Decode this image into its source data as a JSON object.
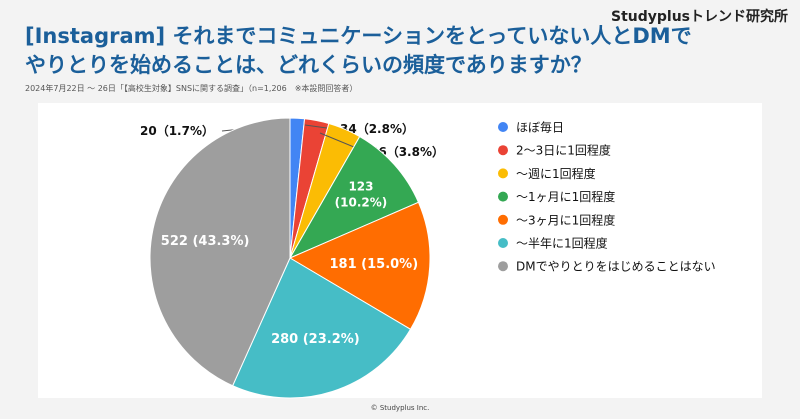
{
  "brand": "Studyplusトレンド研究所",
  "title_line1": "[Instagram] それまでコミュニケーションをとっていない人とDMで",
  "title_line2": "やりとりを始めることは、どれくらいの頻度でありますか？",
  "subtitle": "2024年7月22日 〜 26日「【高校生対象】SNSに関する調査」（n=1,206　※本設問回答者）",
  "copyright": "© Studyplus Inc.",
  "chart_data": {
    "type": "pie",
    "legend_position": "right",
    "categories": [
      "ほぼ毎日",
      "2〜3日に1回程度",
      "〜週に1回程度",
      "〜1ヶ月に1回程度",
      "〜3ヶ月に1回程度",
      "〜半年に1回程度",
      "DMでやりとりをはじめることはない"
    ],
    "values": [
      20,
      34,
      46,
      123,
      181,
      280,
      522
    ],
    "labels": [
      "20（1.7%）",
      "34（2.8%）",
      "46（3.8%）",
      "123 (10.2%)",
      "181 (15.0%)",
      "280 (23.2%)",
      "522 (43.3%)"
    ],
    "colors": [
      "#4285f4",
      "#ea4335",
      "#fbbc04",
      "#34a853",
      "#ff6d01",
      "#46bdc6",
      "#9e9e9e"
    ]
  }
}
